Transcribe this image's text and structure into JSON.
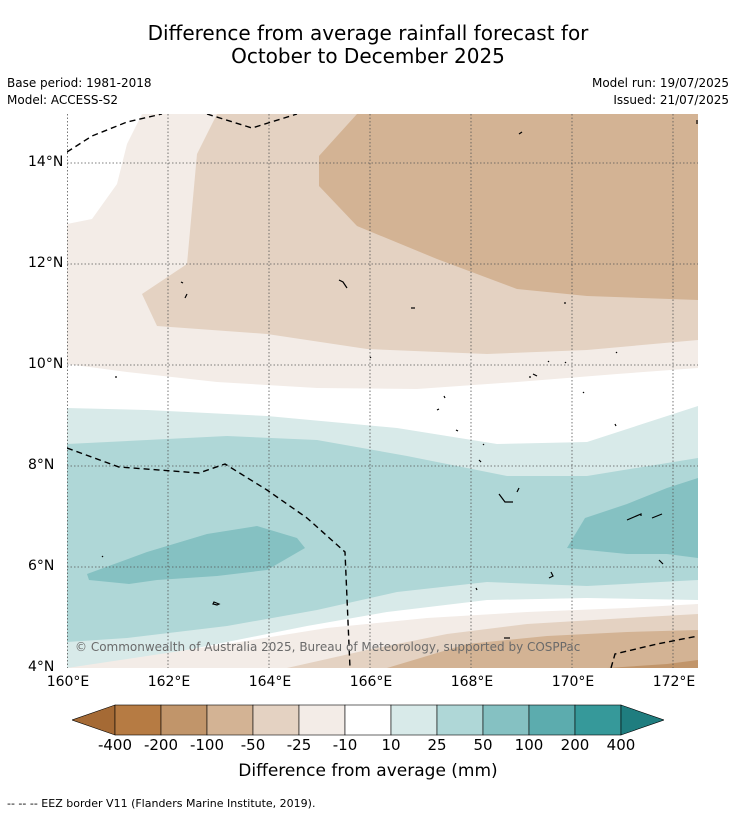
{
  "title_line1": "Difference from average rainfall forecast for",
  "title_line2": "October to December 2025",
  "base_period": "Base period: 1981-2018",
  "model": "Model: ACCESS-S2",
  "model_run": "Model run: 19/07/2025",
  "issued": "Issued: 21/07/2025",
  "copyright": "© Commonwealth of Australia 2025, Bureau of Meteorology, supported by COSPPac",
  "lon_labels": [
    "160°E",
    "162°E",
    "164°E",
    "166°E",
    "168°E",
    "170°E",
    "172°E"
  ],
  "lat_labels": [
    "14°N",
    "12°N",
    "10°N",
    "8°N",
    "6°N",
    "4°N"
  ],
  "colorbar": {
    "title": "Difference from average (mm)",
    "labels": [
      "-400",
      "-200",
      "-100",
      "-50",
      "-25",
      "-10",
      "10",
      "25",
      "50",
      "100",
      "200",
      "400"
    ],
    "colors": [
      "#a56a35",
      "#b67b43",
      "#c1956a",
      "#d3b394",
      "#e4d2c2",
      "#f3ece7",
      "#ffffff",
      "#d8eae9",
      "#afd7d7",
      "#85c1c2",
      "#5cacae",
      "#36999a",
      "#1f7d7f"
    ]
  },
  "footnote": "--  --  -- EEZ border V11 (Flanders Marine Institute, 2019)."
}
